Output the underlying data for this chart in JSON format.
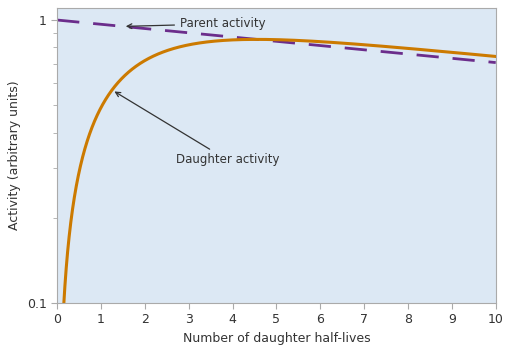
{
  "xlabel": "Number of daughter half-lives",
  "ylabel": "Activity (arbitrary units)",
  "background_color": "#dce8f4",
  "parent_color": "#6b2d8b",
  "daughter_color": "#cc7a00",
  "parent_label": "Parent activity",
  "daughter_label": "Daughter activity",
  "xlim": [
    0,
    10
  ],
  "ylim": [
    0.1,
    1.05
  ],
  "xticks": [
    0,
    1,
    2,
    3,
    4,
    5,
    6,
    7,
    8,
    9,
    10
  ],
  "lambda_ratio": 0.05,
  "fig_bg": "#ffffff"
}
